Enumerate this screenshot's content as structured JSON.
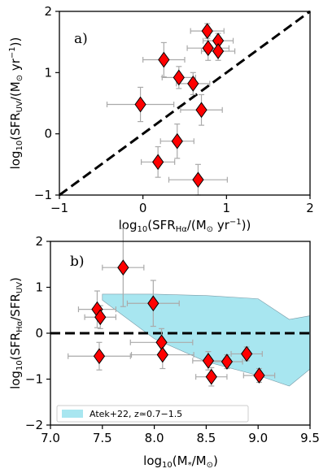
{
  "chart_data": [
    {
      "type": "scatter",
      "panel_label": "a)",
      "xlabel": "log10(SFR_Hα/(M⊙ yr−1))",
      "ylabel": "log10(SFR_UV/(M⊙ yr−1))",
      "xlim": [
        -1,
        2
      ],
      "ylim": [
        -1,
        2
      ],
      "xticks": [
        -1,
        0,
        1,
        2
      ],
      "yticks": [
        -1,
        0,
        1,
        2
      ],
      "marker_color": "#ff0000",
      "errorbar_color": "#aaaaaa",
      "reference_line": {
        "style": "dashed",
        "color": "#000000",
        "points": [
          [
            -1,
            -1
          ],
          [
            2,
            2
          ]
        ]
      },
      "points": [
        {
          "x": 0.77,
          "y": 1.68,
          "xerr": 0.2,
          "yerr": 0.12
        },
        {
          "x": 0.9,
          "y": 1.52,
          "xerr": 0.18,
          "yerr": 0.12
        },
        {
          "x": 0.78,
          "y": 1.4,
          "xerr": 0.25,
          "yerr": 0.2
        },
        {
          "x": 0.9,
          "y": 1.35,
          "xerr": 0.2,
          "yerr": 0.15
        },
        {
          "x": 0.25,
          "y": 1.21,
          "xerr": 0.25,
          "yerr": 0.28
        },
        {
          "x": 0.43,
          "y": 0.92,
          "xerr": 0.2,
          "yerr": 0.18
        },
        {
          "x": 0.6,
          "y": 0.82,
          "xerr": 0.2,
          "yerr": 0.18
        },
        {
          "x": -0.03,
          "y": 0.48,
          "xerr": 0.4,
          "yerr": 0.28
        },
        {
          "x": 0.7,
          "y": 0.39,
          "xerr": 0.25,
          "yerr": 0.25
        },
        {
          "x": 0.41,
          "y": -0.12,
          "xerr": 0.2,
          "yerr": 0.28
        },
        {
          "x": 0.18,
          "y": -0.46,
          "xerr": 0.2,
          "yerr": 0.25
        },
        {
          "x": 0.66,
          "y": -0.75,
          "xerr": 0.35,
          "yerr": 0.25
        }
      ]
    },
    {
      "type": "scatter",
      "panel_label": "b)",
      "xlabel": "log10(M*/M⊙)",
      "ylabel": "log10(SFR_Hα/SFR_UV)",
      "xlim": [
        7.0,
        9.5
      ],
      "ylim": [
        -2,
        2
      ],
      "xticks": [
        7.0,
        7.5,
        8.0,
        8.5,
        9.0,
        9.5
      ],
      "yticks": [
        -2,
        -1,
        0,
        1,
        2
      ],
      "marker_color": "#ff0000",
      "errorbar_color": "#aaaaaa",
      "reference_line": {
        "style": "dashed",
        "color": "#000000",
        "y": 0
      },
      "band": {
        "label": "Atek+22, z≃0.7−1.5",
        "color": "#a8e6f0",
        "upper": [
          [
            7.5,
            0.85
          ],
          [
            8.0,
            0.85
          ],
          [
            8.5,
            0.82
          ],
          [
            9.0,
            0.75
          ],
          [
            9.3,
            0.3
          ],
          [
            9.5,
            0.38
          ]
        ],
        "lower": [
          [
            7.5,
            0.72
          ],
          [
            8.0,
            -0.12
          ],
          [
            8.5,
            -0.62
          ],
          [
            9.0,
            -0.92
          ],
          [
            9.3,
            -1.15
          ],
          [
            9.5,
            -0.78
          ]
        ]
      },
      "legend": {
        "placement": "lower left"
      },
      "points": [
        {
          "x": 7.7,
          "y": 1.43,
          "xerr": 0.2,
          "yerr": 0.85
        },
        {
          "x": 7.45,
          "y": 0.52,
          "xerr": 0.18,
          "yerr": 0.4
        },
        {
          "x": 7.48,
          "y": 0.35,
          "xerr": 0.15,
          "yerr": 0.25
        },
        {
          "x": 7.99,
          "y": 0.65,
          "xerr": 0.25,
          "yerr": 0.5
        },
        {
          "x": 8.07,
          "y": -0.2,
          "xerr": 0.3,
          "yerr": 0.3
        },
        {
          "x": 8.08,
          "y": -0.47,
          "xerr": 0.3,
          "yerr": 0.3
        },
        {
          "x": 7.47,
          "y": -0.5,
          "xerr": 0.3,
          "yerr": 0.3
        },
        {
          "x": 8.52,
          "y": -0.6,
          "xerr": 0.15,
          "yerr": 0.2
        },
        {
          "x": 8.7,
          "y": -0.62,
          "xerr": 0.15,
          "yerr": 0.15
        },
        {
          "x": 8.89,
          "y": -0.45,
          "xerr": 0.15,
          "yerr": 0.15
        },
        {
          "x": 8.55,
          "y": -0.95,
          "xerr": 0.15,
          "yerr": 0.2
        },
        {
          "x": 9.01,
          "y": -0.92,
          "xerr": 0.15,
          "yerr": 0.15
        }
      ]
    }
  ]
}
